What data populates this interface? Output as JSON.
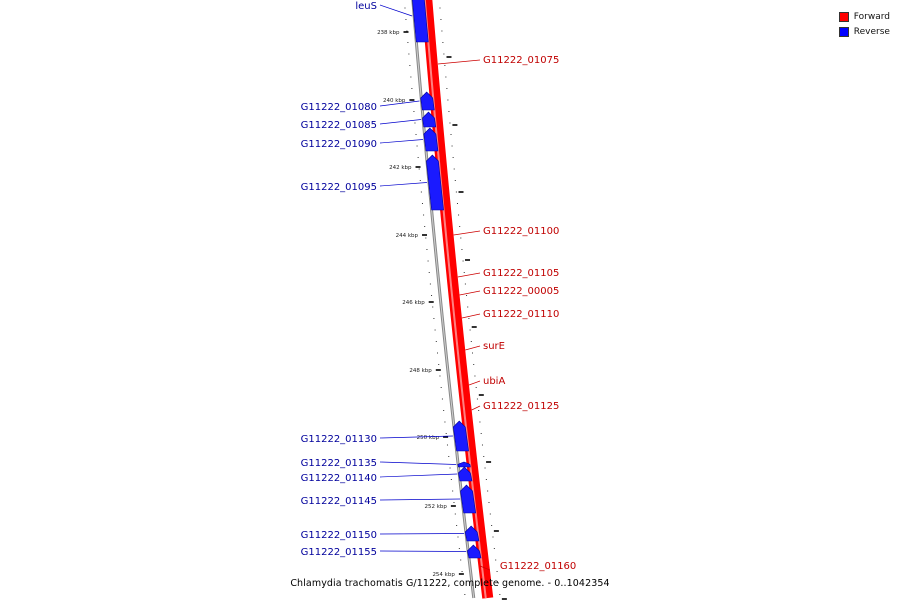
{
  "legend": [
    {
      "label": "Forward",
      "color": "#ff0000"
    },
    {
      "label": "Reverse",
      "color": "#0000ff"
    }
  ],
  "caption": "Chlamydia trachomatis G/11222, complete genome. - 0..1042354",
  "colors": {
    "forward": "#ff0000",
    "reverse": "#1a1aff",
    "backbone": "#888888",
    "forward_label": "#c00000",
    "reverse_label": "#00009c"
  },
  "ticks": [
    {
      "label": "238 kbp"
    },
    {
      "label": "240 kbp"
    },
    {
      "label": "242 kbp"
    },
    {
      "label": "244 kbp"
    },
    {
      "label": "246 kbp"
    },
    {
      "label": "248 kbp"
    },
    {
      "label": "250 kbp"
    },
    {
      "label": "252 kbp"
    },
    {
      "label": "254 kbp"
    }
  ],
  "reverse_genes": [
    {
      "name": "leuS"
    },
    {
      "name": "G11222_01080"
    },
    {
      "name": "G11222_01085"
    },
    {
      "name": "G11222_01090"
    },
    {
      "name": "G11222_01095"
    },
    {
      "name": "G11222_01130"
    },
    {
      "name": "G11222_01135"
    },
    {
      "name": "G11222_01140"
    },
    {
      "name": "G11222_01145"
    },
    {
      "name": "G11222_01150"
    },
    {
      "name": "G11222_01155"
    }
  ],
  "forward_genes": [
    {
      "name": "G11222_01075"
    },
    {
      "name": "G11222_01100"
    },
    {
      "name": "G11222_01105"
    },
    {
      "name": "G11222_00005"
    },
    {
      "name": "G11222_01110"
    },
    {
      "name": "surE"
    },
    {
      "name": "ubiA"
    },
    {
      "name": "G11222_01125"
    },
    {
      "name": "G11222_01160"
    }
  ]
}
